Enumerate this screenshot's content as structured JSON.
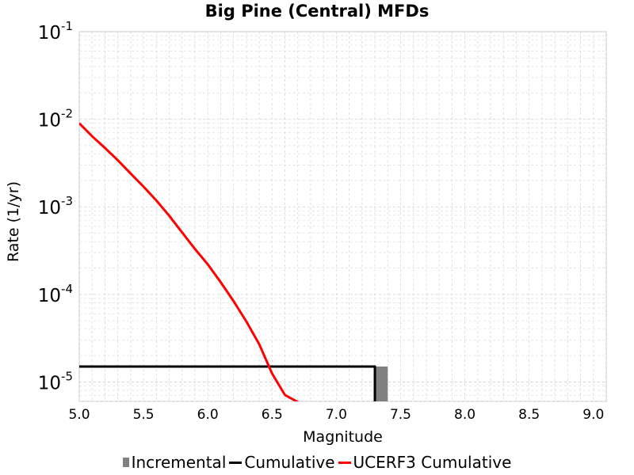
{
  "chart_data": {
    "type": "line",
    "title": "Big Pine (Central) MFDs",
    "xlabel": "Magnitude",
    "ylabel": "Rate (1/yr)",
    "xlim": [
      5.0,
      9.1
    ],
    "ylim": [
      6e-06,
      0.1
    ],
    "yscale": "log",
    "grid": true,
    "legend_position": "bottom",
    "x_ticks": [
      "5.0",
      "5.5",
      "6.0",
      "6.5",
      "7.0",
      "7.5",
      "8.0",
      "8.5",
      "9.0"
    ],
    "y_ticks": [
      {
        "base": "10",
        "exp": "-1"
      },
      {
        "base": "10",
        "exp": "-2"
      },
      {
        "base": "10",
        "exp": "-3"
      },
      {
        "base": "10",
        "exp": "-4"
      },
      {
        "base": "10",
        "exp": "-5"
      }
    ],
    "series": [
      {
        "name": "Incremental",
        "kind": "bar",
        "color": "#808080",
        "bars": [
          {
            "x0": 7.3,
            "x1": 7.4,
            "y": 1.5e-05
          }
        ]
      },
      {
        "name": "Cumulative",
        "kind": "step",
        "color": "#000000",
        "x": [
          5.0,
          7.3,
          7.3
        ],
        "y": [
          1.5e-05,
          1.5e-05,
          6e-06
        ]
      },
      {
        "name": "UCERF3 Cumulative",
        "kind": "line",
        "color": "#ff0000",
        "x": [
          5.0,
          5.1,
          5.2,
          5.3,
          5.4,
          5.5,
          5.6,
          5.7,
          5.8,
          5.9,
          6.0,
          6.1,
          6.2,
          6.3,
          6.4,
          6.5,
          6.6,
          6.7,
          6.8,
          6.85
        ],
        "y": [
          0.009,
          0.0064,
          0.0047,
          0.0034,
          0.0024,
          0.0017,
          0.00118,
          0.00079,
          0.00051,
          0.00033,
          0.00022,
          0.000138,
          8.4e-05,
          4.9e-05,
          2.7e-05,
          1.25e-05,
          7.1e-06,
          5.9e-06,
          5.3e-06,
          4.7e-06
        ]
      }
    ]
  }
}
